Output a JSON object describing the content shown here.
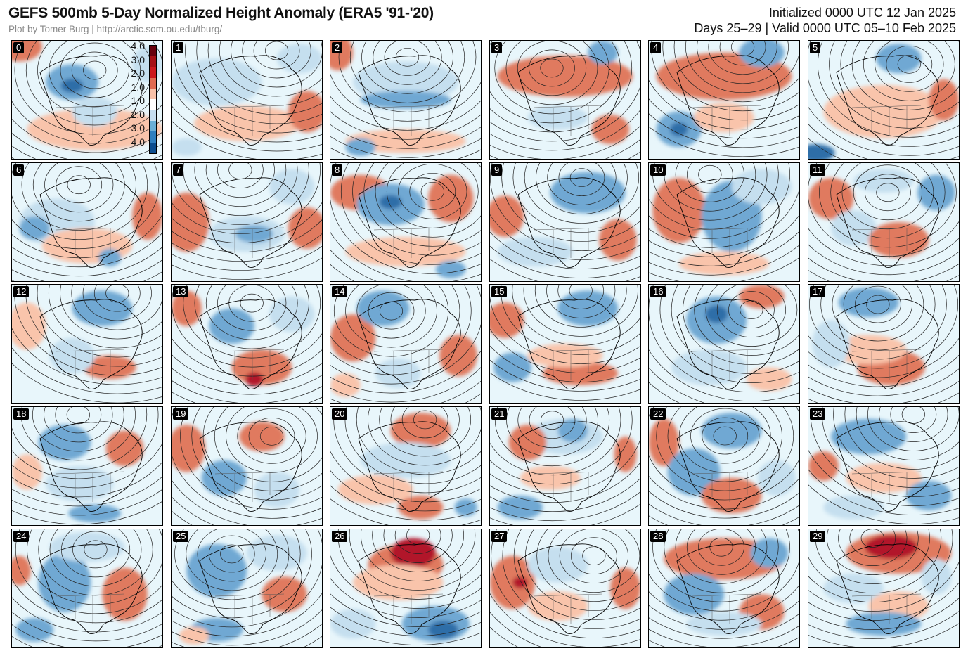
{
  "header": {
    "title": "GEFS 500mb 5-Day Normalized Height Anomaly (ERA5 '91-'20)",
    "credit": "Plot by Tomer Burg | http://arctic.som.ou.edu/tburg/",
    "initialized": "Initialized 0000 UTC 12 Jan 2025",
    "valid": "Days 25–29 | Valid 0000 UTC 05–10 Feb 2025"
  },
  "colorbar": {
    "labels": [
      "4.0",
      "3.0",
      "2.0",
      "1.0",
      "1.0",
      "2.0",
      "3.0",
      "4.0"
    ],
    "colors": [
      "#67000d",
      "#a50f15",
      "#cb181d",
      "#e06b52",
      "#f7c1a8",
      "#ffffff",
      "#c6def0",
      "#6aaed6",
      "#2f7fbf",
      "#0b4d8f"
    ]
  },
  "palette": {
    "warm_strong": "#b2182b",
    "warm": "#e07a5f",
    "warm_light": "#f9c4ab",
    "neutral": "#ffffff",
    "cool_light": "#c5dfef",
    "cool": "#6fa8d3",
    "cool_strong": "#2f6ea8",
    "background": "#e8f6fb"
  },
  "panels": [
    {
      "label": "0",
      "blobs": [
        [
          "wl",
          0.55,
          0.75,
          0.9,
          0.35
        ],
        [
          "w",
          0.05,
          0.05,
          0.3,
          0.25
        ],
        [
          "c",
          0.4,
          0.35,
          0.35,
          0.3
        ],
        [
          "cs",
          0.4,
          0.38,
          0.15,
          0.12
        ],
        [
          "cl",
          0.55,
          0.6,
          0.3,
          0.25
        ],
        [
          "cl",
          0.9,
          0.2,
          0.2,
          0.3
        ]
      ]
    },
    {
      "label": "1",
      "blobs": [
        [
          "cl",
          0.3,
          0.35,
          0.6,
          0.4
        ],
        [
          "wl",
          0.5,
          0.7,
          0.7,
          0.3
        ],
        [
          "w",
          0.9,
          0.6,
          0.25,
          0.35
        ],
        [
          "cl",
          0.1,
          0.9,
          0.2,
          0.15
        ],
        [
          "cl",
          0.85,
          0.15,
          0.3,
          0.25
        ]
      ]
    },
    {
      "label": "2",
      "blobs": [
        [
          "cl",
          0.5,
          0.35,
          0.7,
          0.35
        ],
        [
          "c",
          0.5,
          0.5,
          0.6,
          0.15
        ],
        [
          "w",
          0.05,
          0.1,
          0.2,
          0.3
        ],
        [
          "wl",
          0.5,
          0.85,
          0.8,
          0.2
        ],
        [
          "c",
          0.2,
          0.9,
          0.2,
          0.15
        ]
      ]
    },
    {
      "label": "3",
      "blobs": [
        [
          "w",
          0.5,
          0.3,
          0.9,
          0.35
        ],
        [
          "cl",
          0.45,
          0.65,
          0.4,
          0.2
        ],
        [
          "w",
          0.8,
          0.75,
          0.25,
          0.25
        ],
        [
          "c",
          0.75,
          0.1,
          0.2,
          0.2
        ]
      ]
    },
    {
      "label": "4",
      "blobs": [
        [
          "w",
          0.5,
          0.3,
          0.9,
          0.4
        ],
        [
          "c",
          0.2,
          0.75,
          0.3,
          0.3
        ],
        [
          "cs",
          0.2,
          0.75,
          0.12,
          0.12
        ],
        [
          "wl",
          0.5,
          0.65,
          0.4,
          0.25
        ],
        [
          "c",
          0.75,
          0.1,
          0.3,
          0.25
        ]
      ]
    },
    {
      "label": "5",
      "blobs": [
        [
          "wl",
          0.5,
          0.6,
          0.8,
          0.45
        ],
        [
          "w",
          0.9,
          0.5,
          0.2,
          0.35
        ],
        [
          "c",
          0.6,
          0.15,
          0.3,
          0.25
        ],
        [
          "cs",
          0.05,
          0.95,
          0.25,
          0.15
        ]
      ]
    },
    {
      "label": "6",
      "blobs": [
        [
          "cl",
          0.3,
          0.5,
          0.5,
          0.4
        ],
        [
          "c",
          0.15,
          0.55,
          0.2,
          0.2
        ],
        [
          "wl",
          0.5,
          0.7,
          0.6,
          0.3
        ],
        [
          "w",
          0.9,
          0.45,
          0.2,
          0.4
        ],
        [
          "c",
          0.65,
          0.8,
          0.15,
          0.15
        ]
      ]
    },
    {
      "label": "7",
      "blobs": [
        [
          "w",
          0.1,
          0.5,
          0.3,
          0.5
        ],
        [
          "cl",
          0.5,
          0.6,
          0.5,
          0.3
        ],
        [
          "c",
          0.55,
          0.6,
          0.25,
          0.15
        ],
        [
          "w",
          0.9,
          0.55,
          0.25,
          0.35
        ],
        [
          "cl",
          0.8,
          0.2,
          0.3,
          0.3
        ]
      ]
    },
    {
      "label": "8",
      "blobs": [
        [
          "w",
          0.2,
          0.25,
          0.4,
          0.3
        ],
        [
          "c",
          0.4,
          0.35,
          0.45,
          0.35
        ],
        [
          "cs",
          0.4,
          0.33,
          0.15,
          0.12
        ],
        [
          "w",
          0.8,
          0.3,
          0.3,
          0.4
        ],
        [
          "wl",
          0.5,
          0.75,
          0.8,
          0.25
        ],
        [
          "c",
          0.8,
          0.9,
          0.2,
          0.15
        ]
      ]
    },
    {
      "label": "9",
      "blobs": [
        [
          "c",
          0.65,
          0.25,
          0.5,
          0.35
        ],
        [
          "w",
          0.1,
          0.45,
          0.25,
          0.35
        ],
        [
          "cl",
          0.3,
          0.75,
          0.5,
          0.25
        ],
        [
          "w",
          0.85,
          0.65,
          0.25,
          0.35
        ]
      ]
    },
    {
      "label": "10",
      "blobs": [
        [
          "w",
          0.2,
          0.4,
          0.35,
          0.55
        ],
        [
          "c",
          0.55,
          0.45,
          0.4,
          0.6
        ],
        [
          "cl",
          0.75,
          0.2,
          0.4,
          0.3
        ],
        [
          "wl",
          0.5,
          0.85,
          0.6,
          0.2
        ]
      ]
    },
    {
      "label": "11",
      "blobs": [
        [
          "w",
          0.15,
          0.3,
          0.3,
          0.35
        ],
        [
          "cl",
          0.3,
          0.55,
          0.3,
          0.3
        ],
        [
          "w",
          0.6,
          0.65,
          0.4,
          0.3
        ],
        [
          "c",
          0.85,
          0.25,
          0.25,
          0.3
        ],
        [
          "cl",
          0.5,
          0.15,
          0.4,
          0.2
        ]
      ]
    },
    {
      "label": "12",
      "blobs": [
        [
          "wl",
          0.1,
          0.35,
          0.25,
          0.4
        ],
        [
          "c",
          0.6,
          0.2,
          0.4,
          0.3
        ],
        [
          "w",
          0.65,
          0.7,
          0.35,
          0.2
        ],
        [
          "cl",
          0.4,
          0.6,
          0.3,
          0.3
        ]
      ]
    },
    {
      "label": "13",
      "blobs": [
        [
          "w",
          0.1,
          0.2,
          0.2,
          0.3
        ],
        [
          "c",
          0.4,
          0.35,
          0.3,
          0.3
        ],
        [
          "w",
          0.6,
          0.7,
          0.4,
          0.3
        ],
        [
          "ws",
          0.55,
          0.8,
          0.12,
          0.12
        ],
        [
          "cl",
          0.8,
          0.25,
          0.3,
          0.3
        ]
      ]
    },
    {
      "label": "14",
      "blobs": [
        [
          "w",
          0.15,
          0.45,
          0.3,
          0.4
        ],
        [
          "c",
          0.35,
          0.2,
          0.35,
          0.3
        ],
        [
          "cl",
          0.45,
          0.75,
          0.3,
          0.25
        ],
        [
          "w",
          0.85,
          0.6,
          0.25,
          0.35
        ],
        [
          "wl",
          0.1,
          0.85,
          0.2,
          0.2
        ]
      ]
    },
    {
      "label": "15",
      "blobs": [
        [
          "w",
          0.1,
          0.3,
          0.25,
          0.3
        ],
        [
          "c",
          0.15,
          0.7,
          0.25,
          0.25
        ],
        [
          "c",
          0.65,
          0.2,
          0.4,
          0.3
        ],
        [
          "w",
          0.6,
          0.75,
          0.5,
          0.2
        ],
        [
          "wl",
          0.5,
          0.6,
          0.5,
          0.2
        ]
      ]
    },
    {
      "label": "16",
      "blobs": [
        [
          "c",
          0.45,
          0.3,
          0.4,
          0.4
        ],
        [
          "cs",
          0.45,
          0.25,
          0.15,
          0.15
        ],
        [
          "cl",
          0.4,
          0.7,
          0.5,
          0.3
        ],
        [
          "w",
          0.75,
          0.1,
          0.3,
          0.2
        ],
        [
          "wl",
          0.8,
          0.8,
          0.3,
          0.2
        ]
      ]
    },
    {
      "label": "17",
      "blobs": [
        [
          "c",
          0.4,
          0.15,
          0.4,
          0.25
        ],
        [
          "w",
          0.55,
          0.7,
          0.45,
          0.3
        ],
        [
          "wl",
          0.4,
          0.55,
          0.5,
          0.25
        ],
        [
          "cl",
          0.15,
          0.5,
          0.25,
          0.4
        ]
      ]
    },
    {
      "label": "18",
      "blobs": [
        [
          "c",
          0.35,
          0.3,
          0.35,
          0.3
        ],
        [
          "w",
          0.75,
          0.35,
          0.25,
          0.3
        ],
        [
          "cl",
          0.45,
          0.65,
          0.45,
          0.3
        ],
        [
          "c",
          0.55,
          0.9,
          0.35,
          0.15
        ],
        [
          "wl",
          0.1,
          0.55,
          0.2,
          0.3
        ]
      ]
    },
    {
      "label": "19",
      "blobs": [
        [
          "w",
          0.1,
          0.35,
          0.25,
          0.4
        ],
        [
          "c",
          0.35,
          0.6,
          0.3,
          0.3
        ],
        [
          "w",
          0.6,
          0.25,
          0.3,
          0.25
        ],
        [
          "cl",
          0.7,
          0.7,
          0.3,
          0.3
        ]
      ]
    },
    {
      "label": "20",
      "blobs": [
        [
          "w",
          0.6,
          0.2,
          0.4,
          0.3
        ],
        [
          "cl",
          0.5,
          0.45,
          0.6,
          0.3
        ],
        [
          "wl",
          0.3,
          0.7,
          0.5,
          0.25
        ],
        [
          "w",
          0.6,
          0.85,
          0.3,
          0.2
        ],
        [
          "c",
          0.9,
          0.85,
          0.15,
          0.15
        ]
      ]
    },
    {
      "label": "21",
      "blobs": [
        [
          "cl",
          0.5,
          0.25,
          0.5,
          0.3
        ],
        [
          "c",
          0.55,
          0.2,
          0.2,
          0.2
        ],
        [
          "w",
          0.25,
          0.3,
          0.25,
          0.3
        ],
        [
          "wl",
          0.4,
          0.6,
          0.4,
          0.2
        ],
        [
          "c",
          0.2,
          0.85,
          0.3,
          0.2
        ],
        [
          "w",
          0.9,
          0.4,
          0.15,
          0.3
        ]
      ]
    },
    {
      "label": "22",
      "blobs": [
        [
          "w",
          0.1,
          0.3,
          0.2,
          0.4
        ],
        [
          "c",
          0.3,
          0.55,
          0.35,
          0.4
        ],
        [
          "c",
          0.55,
          0.2,
          0.4,
          0.3
        ],
        [
          "w",
          0.55,
          0.75,
          0.4,
          0.3
        ],
        [
          "cl",
          0.85,
          0.6,
          0.25,
          0.3
        ]
      ]
    },
    {
      "label": "23",
      "blobs": [
        [
          "c",
          0.4,
          0.25,
          0.5,
          0.3
        ],
        [
          "w",
          0.1,
          0.5,
          0.2,
          0.25
        ],
        [
          "wl",
          0.5,
          0.6,
          0.5,
          0.25
        ],
        [
          "c",
          0.8,
          0.75,
          0.3,
          0.25
        ],
        [
          "cl",
          0.3,
          0.85,
          0.4,
          0.2
        ]
      ]
    },
    {
      "label": "24",
      "blobs": [
        [
          "w",
          0.05,
          0.35,
          0.15,
          0.25
        ],
        [
          "c",
          0.35,
          0.45,
          0.35,
          0.5
        ],
        [
          "w",
          0.75,
          0.55,
          0.3,
          0.45
        ],
        [
          "cl",
          0.5,
          0.15,
          0.5,
          0.25
        ],
        [
          "c",
          0.15,
          0.85,
          0.25,
          0.2
        ]
      ]
    },
    {
      "label": "25",
      "blobs": [
        [
          "c",
          0.3,
          0.35,
          0.4,
          0.45
        ],
        [
          "cl",
          0.7,
          0.2,
          0.4,
          0.3
        ],
        [
          "w",
          0.75,
          0.55,
          0.3,
          0.3
        ],
        [
          "c",
          0.3,
          0.85,
          0.35,
          0.2
        ],
        [
          "wl",
          0.15,
          0.9,
          0.2,
          0.15
        ]
      ]
    },
    {
      "label": "26",
      "blobs": [
        [
          "w",
          0.5,
          0.3,
          0.5,
          0.35
        ],
        [
          "ws",
          0.55,
          0.2,
          0.3,
          0.25
        ],
        [
          "wl",
          0.45,
          0.45,
          0.6,
          0.3
        ],
        [
          "c",
          0.7,
          0.8,
          0.45,
          0.3
        ],
        [
          "cs",
          0.75,
          0.85,
          0.2,
          0.15
        ],
        [
          "cl",
          0.15,
          0.8,
          0.3,
          0.25
        ]
      ]
    },
    {
      "label": "27",
      "blobs": [
        [
          "w",
          0.15,
          0.45,
          0.3,
          0.45
        ],
        [
          "ws",
          0.2,
          0.45,
          0.1,
          0.1
        ],
        [
          "cl",
          0.45,
          0.3,
          0.4,
          0.3
        ],
        [
          "wl",
          0.45,
          0.65,
          0.4,
          0.25
        ],
        [
          "w",
          0.9,
          0.5,
          0.2,
          0.35
        ]
      ]
    },
    {
      "label": "28",
      "blobs": [
        [
          "w",
          0.5,
          0.25,
          0.8,
          0.35
        ],
        [
          "c",
          0.3,
          0.55,
          0.4,
          0.35
        ],
        [
          "c",
          0.8,
          0.2,
          0.25,
          0.25
        ],
        [
          "w",
          0.75,
          0.7,
          0.3,
          0.3
        ],
        [
          "cl",
          0.5,
          0.8,
          0.5,
          0.2
        ]
      ]
    },
    {
      "label": "29",
      "blobs": [
        [
          "w",
          0.6,
          0.2,
          0.7,
          0.35
        ],
        [
          "ws",
          0.55,
          0.15,
          0.35,
          0.2
        ],
        [
          "cl",
          0.3,
          0.5,
          0.4,
          0.25
        ],
        [
          "wl",
          0.6,
          0.65,
          0.4,
          0.25
        ],
        [
          "c",
          0.5,
          0.8,
          0.5,
          0.2
        ],
        [
          "cl",
          0.85,
          0.4,
          0.2,
          0.3
        ]
      ]
    }
  ]
}
